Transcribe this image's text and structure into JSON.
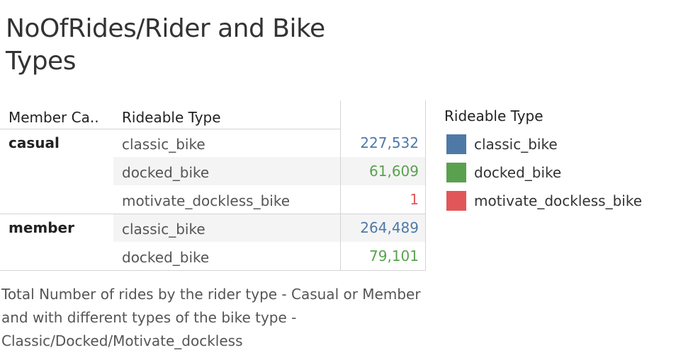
{
  "title": "NoOfRides/Rider and Bike Types",
  "caption": "Total Number of rides by the rider type - Casual or Member and with different types of the bike type - Classic/Docked/Motivate_dockless",
  "table": {
    "header_member": "Member Ca..",
    "header_rideable": "Rideable Type"
  },
  "colors": {
    "classic_bike": "#4e79a7",
    "docked_bike": "#59a14f",
    "motivate_dockless_bike": "#e15759"
  },
  "legend": {
    "title": "Rideable Type",
    "items": [
      {
        "label": "classic_bike",
        "color": "#4e79a7"
      },
      {
        "label": "docked_bike",
        "color": "#59a14f"
      },
      {
        "label": "motivate_dockless_bike",
        "color": "#e15759"
      }
    ]
  },
  "chart_data": {
    "type": "table",
    "title": "NoOfRides/Rider and Bike Types",
    "columns": [
      "Member Ca..",
      "Rideable Type"
    ],
    "rows": [
      {
        "member": "casual",
        "type": "classic_bike",
        "value": 227532,
        "display": "227,532"
      },
      {
        "member": "",
        "type": "docked_bike",
        "value": 61609,
        "display": "61,609"
      },
      {
        "member": "",
        "type": "motivate_dockless_bike",
        "value": 1,
        "display": "1"
      },
      {
        "member": "member",
        "type": "classic_bike",
        "value": 264489,
        "display": "264,489"
      },
      {
        "member": "",
        "type": "docked_bike",
        "value": 79101,
        "display": "79,101"
      }
    ]
  }
}
